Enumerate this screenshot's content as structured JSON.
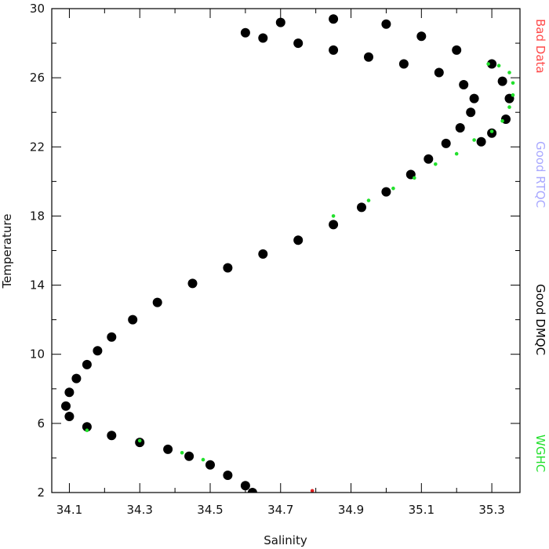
{
  "chart_data": {
    "type": "scatter",
    "xlabel": "Salinity",
    "ylabel": "Temperature",
    "xlim": [
      34.05,
      35.38
    ],
    "ylim": [
      2,
      30
    ],
    "x_ticks": [
      "34.1",
      "34.3",
      "34.5",
      "34.7",
      "34.9",
      "35.1",
      "35.3"
    ],
    "y_ticks": [
      "2",
      "6",
      "10",
      "14",
      "18",
      "22",
      "26",
      "30"
    ],
    "grid": false,
    "legend_position": "right (vertical text)",
    "legend": [
      {
        "label": "Bad Data",
        "color": "#ff4a4a"
      },
      {
        "label": "Good RTQC",
        "color": "#a8a8ff"
      },
      {
        "label": "Good DMQC",
        "color": "#000000"
      },
      {
        "label": "WGHC",
        "color": "#22e02c"
      }
    ],
    "series": [
      {
        "name": "Good DMQC",
        "color": "#000000",
        "points": [
          [
            34.62,
            2.0
          ],
          [
            34.6,
            2.4
          ],
          [
            34.55,
            3.0
          ],
          [
            34.5,
            3.6
          ],
          [
            34.44,
            4.1
          ],
          [
            34.38,
            4.5
          ],
          [
            34.3,
            4.9
          ],
          [
            34.22,
            5.3
          ],
          [
            34.15,
            5.8
          ],
          [
            34.1,
            6.4
          ],
          [
            34.09,
            7.0
          ],
          [
            34.1,
            7.8
          ],
          [
            34.12,
            8.6
          ],
          [
            34.15,
            9.4
          ],
          [
            34.18,
            10.2
          ],
          [
            34.22,
            11.0
          ],
          [
            34.28,
            12.0
          ],
          [
            34.35,
            13.0
          ],
          [
            34.45,
            14.1
          ],
          [
            34.55,
            15.0
          ],
          [
            34.65,
            15.8
          ],
          [
            34.75,
            16.6
          ],
          [
            34.85,
            17.5
          ],
          [
            34.93,
            18.5
          ],
          [
            35.0,
            19.4
          ],
          [
            35.07,
            20.4
          ],
          [
            35.12,
            21.3
          ],
          [
            35.17,
            22.2
          ],
          [
            35.21,
            23.1
          ],
          [
            35.24,
            24.0
          ],
          [
            35.25,
            24.8
          ],
          [
            35.22,
            25.6
          ],
          [
            35.15,
            26.3
          ],
          [
            35.05,
            26.8
          ],
          [
            34.95,
            27.2
          ],
          [
            34.85,
            27.6
          ],
          [
            34.75,
            28.0
          ],
          [
            34.65,
            28.3
          ],
          [
            34.6,
            28.6
          ],
          [
            34.7,
            29.2
          ],
          [
            34.85,
            29.4
          ],
          [
            35.0,
            29.1
          ],
          [
            35.1,
            28.4
          ],
          [
            35.2,
            27.6
          ],
          [
            35.3,
            26.8
          ],
          [
            35.33,
            25.8
          ],
          [
            35.35,
            24.8
          ],
          [
            35.34,
            23.6
          ],
          [
            35.3,
            22.8
          ],
          [
            35.27,
            22.3
          ]
        ]
      },
      {
        "name": "WGHC",
        "color": "#22e02c",
        "points": [
          [
            34.42,
            4.3
          ],
          [
            34.48,
            3.9
          ],
          [
            34.3,
            5.0
          ],
          [
            34.15,
            5.6
          ],
          [
            34.85,
            18.0
          ],
          [
            34.95,
            18.9
          ],
          [
            35.02,
            19.6
          ],
          [
            35.08,
            20.2
          ],
          [
            35.14,
            21.0
          ],
          [
            35.2,
            21.6
          ],
          [
            35.25,
            22.4
          ],
          [
            35.3,
            22.9
          ],
          [
            35.33,
            23.5
          ],
          [
            35.35,
            24.3
          ],
          [
            35.36,
            25.0
          ],
          [
            35.36,
            25.7
          ],
          [
            35.35,
            26.3
          ],
          [
            35.32,
            26.7
          ],
          [
            35.29,
            26.8
          ]
        ]
      },
      {
        "name": "Bad Data",
        "color": "#e02020",
        "points": [
          [
            34.79,
            2.1
          ]
        ]
      }
    ]
  }
}
